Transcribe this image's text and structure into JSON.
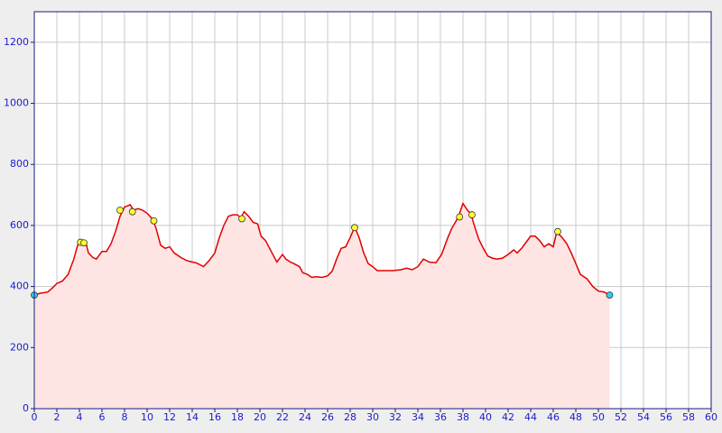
{
  "chart_data": {
    "type": "area",
    "x": [
      0,
      0.5,
      1.2,
      1.6,
      2,
      2.5,
      3,
      3.5,
      3.8,
      4,
      4.3,
      4.6,
      4.8,
      5.2,
      5.5,
      6,
      6.4,
      6.8,
      7.2,
      7.6,
      8,
      8.5,
      8.8,
      9.2,
      9.6,
      10,
      10.5,
      10.8,
      11.2,
      11.6,
      12,
      12.4,
      13,
      13.5,
      14,
      14.3,
      14.6,
      15,
      15.5,
      16,
      16.4,
      16.8,
      17.2,
      17.6,
      18,
      18.3,
      18.6,
      19,
      19.4,
      19.8,
      20.1,
      20.5,
      21,
      21.5,
      22,
      22.3,
      22.7,
      23,
      23.5,
      23.8,
      24.2,
      24.6,
      25,
      25.5,
      26,
      26.4,
      26.8,
      27.2,
      27.6,
      28,
      28.4,
      28.8,
      29.2,
      29.6,
      30,
      30.4,
      31,
      31.8,
      32.5,
      33,
      33.5,
      34,
      34.5,
      35,
      35.6,
      36.1,
      36.6,
      37,
      37.4,
      37.7,
      38,
      38.4,
      38.7,
      39,
      39.4,
      39.8,
      40.2,
      40.6,
      41,
      41.5,
      42,
      42.5,
      42.8,
      43.2,
      43.6,
      44,
      44.4,
      44.8,
      45.2,
      45.6,
      46,
      46.3,
      46.8,
      47.2,
      47.6,
      48,
      48.4,
      49,
      49.5,
      50,
      50.5,
      51
    ],
    "values": [
      372,
      378,
      382,
      395,
      410,
      418,
      440,
      490,
      530,
      550,
      545,
      540,
      510,
      495,
      490,
      515,
      515,
      540,
      580,
      630,
      660,
      668,
      650,
      655,
      650,
      640,
      620,
      590,
      535,
      525,
      530,
      510,
      495,
      485,
      480,
      478,
      473,
      465,
      485,
      510,
      560,
      600,
      630,
      635,
      635,
      625,
      645,
      630,
      610,
      605,
      565,
      550,
      515,
      480,
      505,
      490,
      480,
      475,
      465,
      445,
      440,
      430,
      432,
      430,
      435,
      450,
      490,
      525,
      530,
      560,
      595,
      560,
      510,
      475,
      465,
      452,
      452,
      452,
      455,
      460,
      455,
      465,
      490,
      480,
      478,
      505,
      555,
      590,
      615,
      640,
      672,
      650,
      638,
      600,
      555,
      525,
      500,
      493,
      490,
      493,
      505,
      520,
      510,
      525,
      545,
      565,
      565,
      550,
      530,
      540,
      530,
      578,
      560,
      540,
      510,
      475,
      440,
      425,
      400,
      385,
      382,
      372
    ],
    "color": "#e00000",
    "fill": "#ffe4e4",
    "markers": {
      "x": [
        0,
        4.1,
        4.4,
        7.6,
        8.7,
        10.6,
        18.4,
        28.4,
        37.7,
        38.8,
        46.4,
        51
      ],
      "values": [
        372,
        545,
        543,
        650,
        645,
        615,
        622,
        593,
        628,
        635,
        580,
        372
      ],
      "colors": [
        "#33ccee",
        "#ffff33",
        "#ffff33",
        "#ffff33",
        "#ffff33",
        "#ffff33",
        "#ffff33",
        "#ffff33",
        "#ffff33",
        "#ffff33",
        "#ffff33",
        "#33ccee"
      ]
    },
    "xlim": [
      0,
      60
    ],
    "ylim": [
      0,
      1300
    ],
    "xticks": [
      0,
      2,
      4,
      6,
      8,
      10,
      12,
      14,
      16,
      18,
      20,
      22,
      24,
      26,
      28,
      30,
      32,
      34,
      36,
      38,
      40,
      42,
      44,
      46,
      48,
      50,
      52,
      54,
      56,
      58,
      60
    ],
    "yticks": [
      0,
      200,
      400,
      600,
      800,
      1000,
      1200
    ],
    "grid": true
  }
}
